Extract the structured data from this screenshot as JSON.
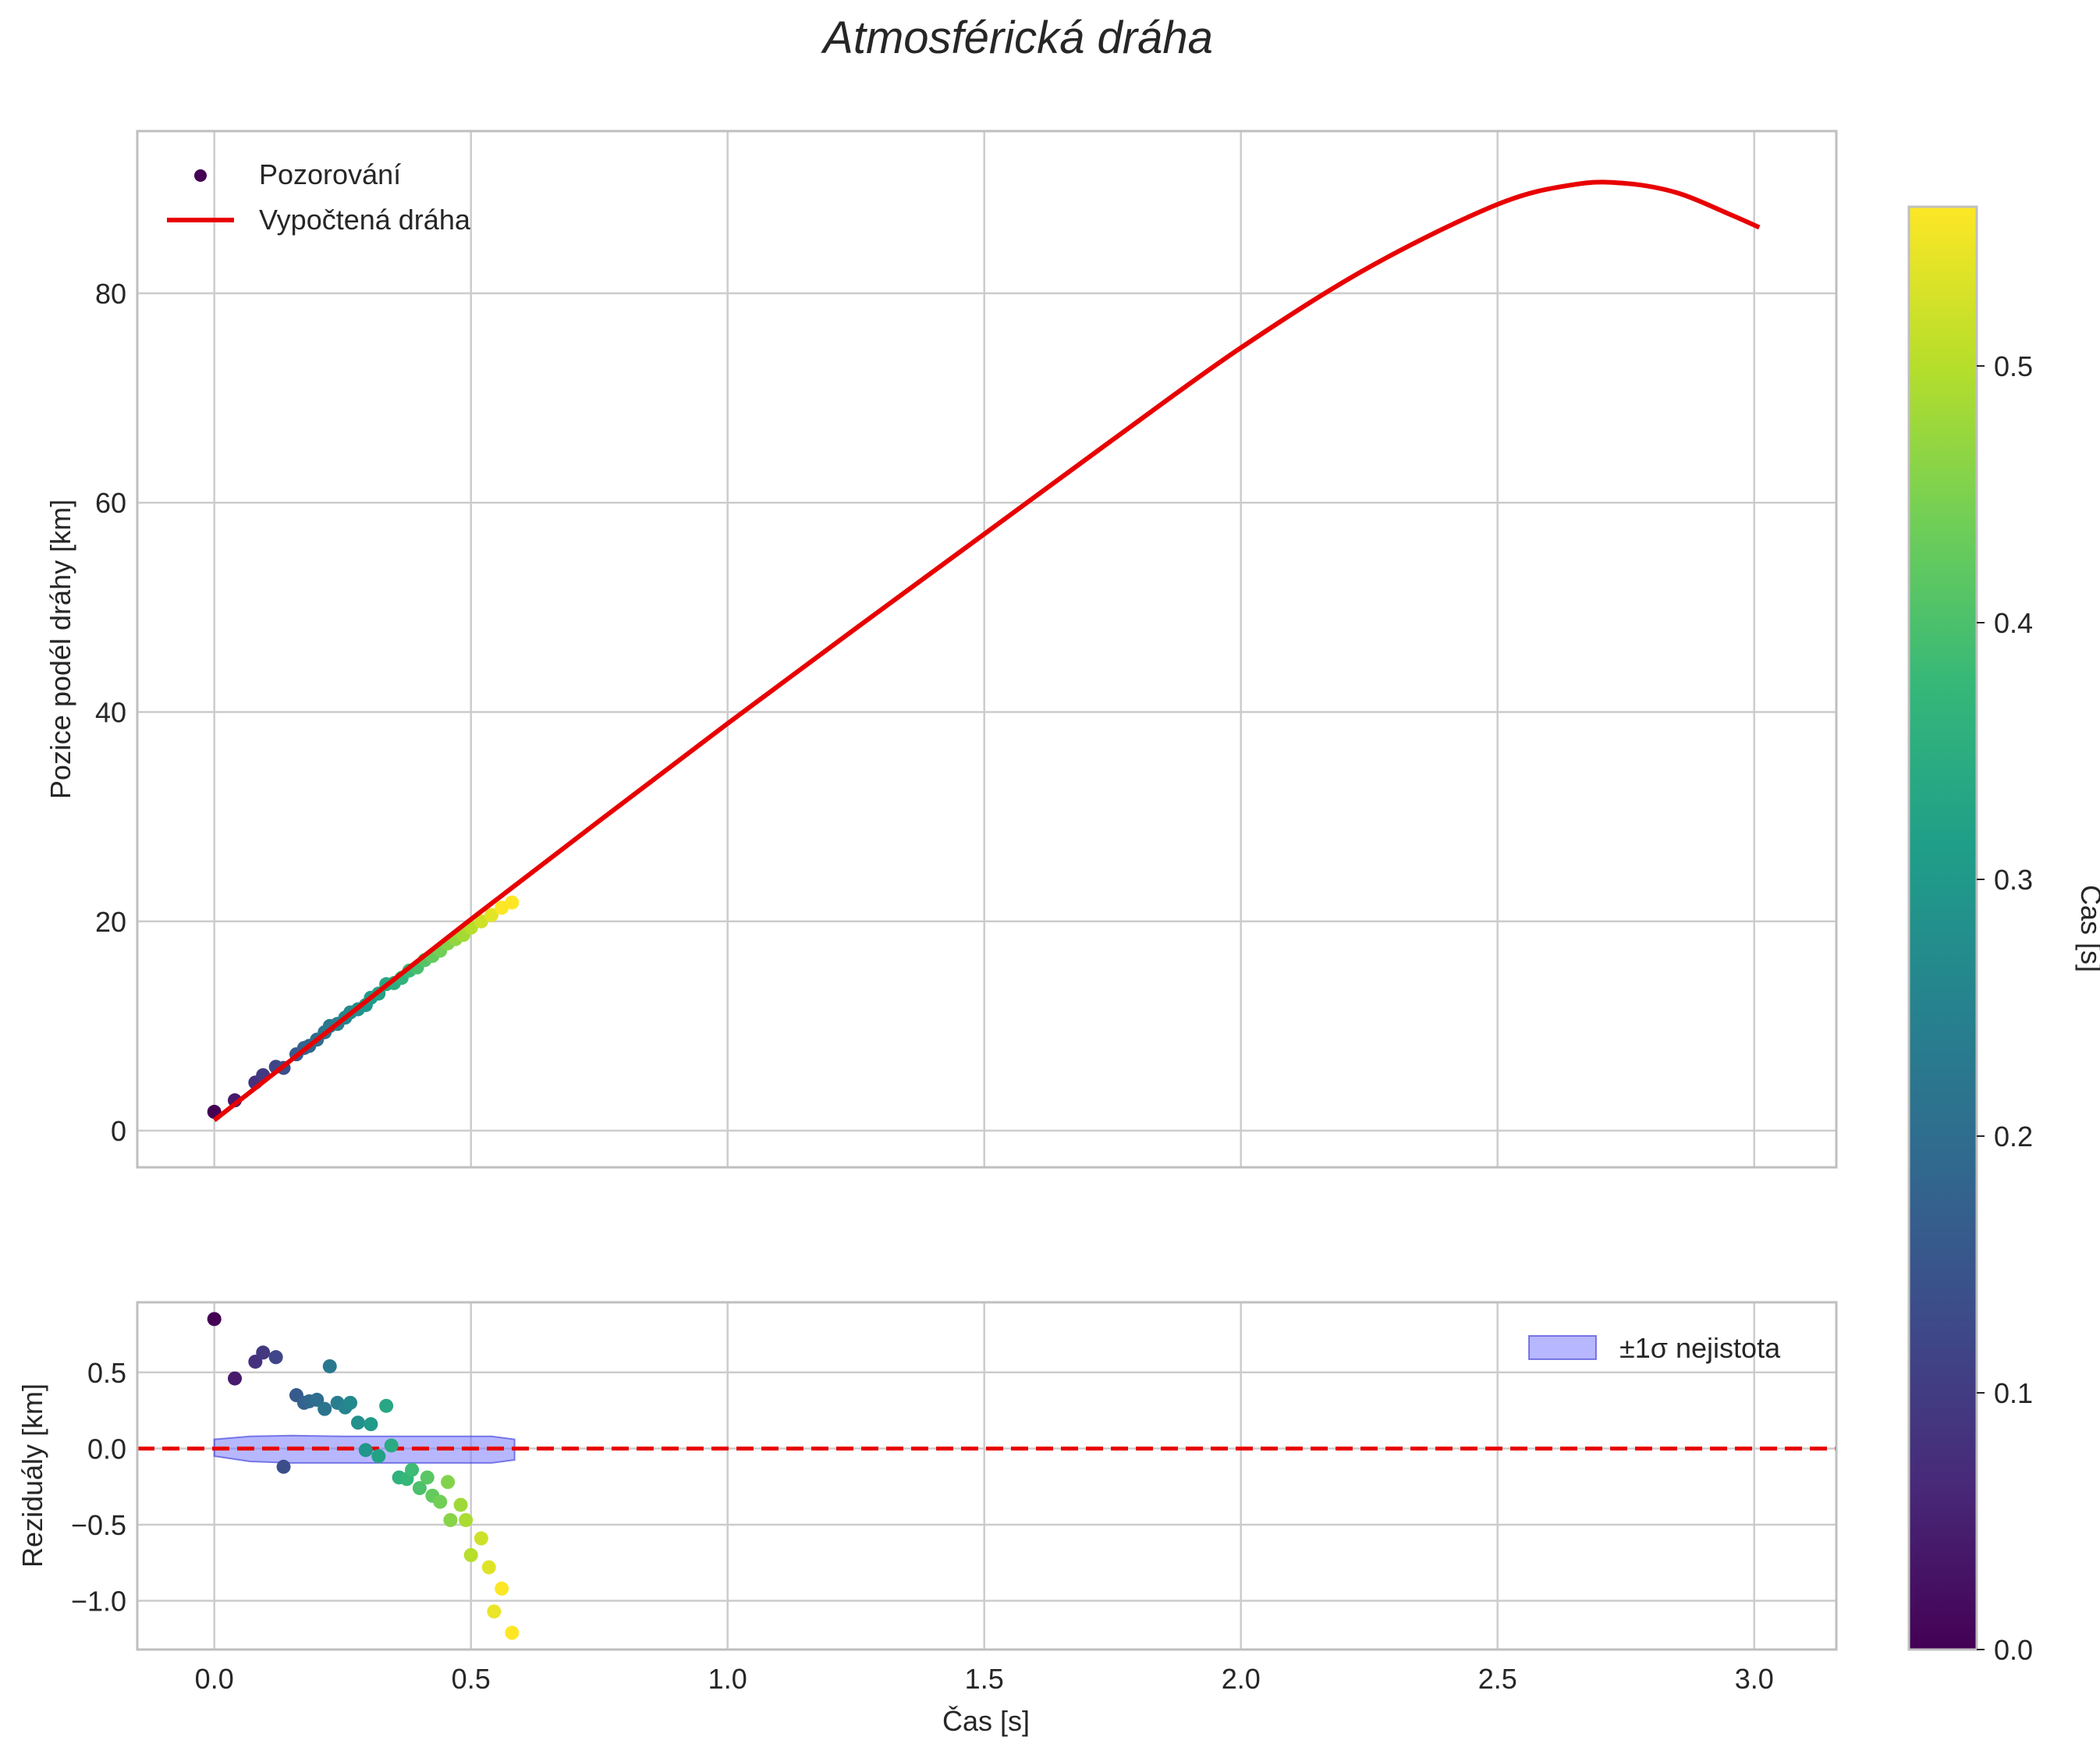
{
  "chart_data": {
    "title": "Atmosférická dráha",
    "colors": {
      "fit_line": "#e80000",
      "zero_line": "#e80000",
      "band_fill": "#7b7bff",
      "band_edge": "#3535d8",
      "grid": "#cccccc",
      "axes_edge": "#bfbfbf"
    },
    "colormap": [
      "#440154",
      "#482878",
      "#3e4989",
      "#31688e",
      "#26828e",
      "#1f9e89",
      "#35b779",
      "#6ece58",
      "#b5de2b",
      "#fde725"
    ],
    "colorbar": {
      "label": "Čas [s]",
      "range": [
        0.0,
        0.562
      ],
      "ticks": [
        0.0,
        0.1,
        0.2,
        0.3,
        0.4,
        0.5
      ],
      "tick_labels": [
        "0.0",
        "0.1",
        "0.2",
        "0.3",
        "0.4",
        "0.5"
      ]
    },
    "x_axis": {
      "label": "Čas [s]",
      "range": [
        -0.15,
        3.16
      ],
      "ticks": [
        0.0,
        0.5,
        1.0,
        1.5,
        2.0,
        2.5,
        3.0
      ],
      "tick_labels": [
        "0.0",
        "0.5",
        "1.0",
        "1.5",
        "2.0",
        "2.5",
        "3.0"
      ]
    },
    "top_panel": {
      "type": "scatter+line",
      "ylabel": "Pozice podél dráhy [km]",
      "ylim": [
        -3.5,
        95.5
      ],
      "yticks": [
        0,
        20,
        40,
        60,
        80
      ],
      "ytick_labels": [
        "0",
        "20",
        "40",
        "60",
        "80"
      ],
      "legend": {
        "placement": "upper-left",
        "entries": [
          {
            "label": "Pozorování",
            "kind": "marker"
          },
          {
            "label": "Vypočtená dráha",
            "kind": "line"
          }
        ]
      },
      "fit_curve": {
        "x": [
          0.0,
          0.25,
          0.5,
          0.75,
          1.0,
          1.25,
          1.5,
          1.75,
          2.0,
          2.25,
          2.5,
          2.65,
          2.75,
          2.85,
          2.95,
          3.01
        ],
        "y": [
          1.0,
          10.6,
          20.2,
          29.6,
          38.9,
          48.0,
          57.0,
          66.0,
          74.8,
          82.5,
          88.5,
          90.4,
          90.5,
          89.6,
          87.6,
          86.3
        ]
      },
      "observations": {
        "t": [
          0.0,
          0.04,
          0.08,
          0.095,
          0.12,
          0.135,
          0.16,
          0.175,
          0.185,
          0.2,
          0.215,
          0.225,
          0.24,
          0.255,
          0.265,
          0.28,
          0.295,
          0.305,
          0.32,
          0.335,
          0.35,
          0.365,
          0.38,
          0.395,
          0.41,
          0.425,
          0.44,
          0.455,
          0.47,
          0.485,
          0.5,
          0.52,
          0.54,
          0.56,
          0.58
        ],
        "pos": [
          1.8,
          2.9,
          4.6,
          5.3,
          6.1,
          6.0,
          7.3,
          7.9,
          8.1,
          8.7,
          9.4,
          10.0,
          10.2,
          10.8,
          11.3,
          11.6,
          12.0,
          12.7,
          13.1,
          14.0,
          14.1,
          14.6,
          15.3,
          15.6,
          16.3,
          16.7,
          17.2,
          17.9,
          18.3,
          18.7,
          19.4,
          20.0,
          20.6,
          21.3,
          21.8
        ]
      }
    },
    "bottom_panel": {
      "type": "scatter",
      "ylabel": "Reziduály [km]",
      "ylim": [
        -1.32,
        0.96
      ],
      "yticks": [
        -1.0,
        -0.5,
        0.0,
        0.5
      ],
      "ytick_labels": [
        "−1.0",
        "−0.5",
        "0.0",
        "0.5"
      ],
      "legend": {
        "placement": "upper-right",
        "entries": [
          {
            "label": "±1σ nejistota",
            "kind": "patch"
          }
        ]
      },
      "zero_line": 0.0,
      "band": {
        "x": [
          0.0,
          0.07,
          0.15,
          0.25,
          0.35,
          0.45,
          0.54,
          0.585
        ],
        "upper": [
          0.06,
          0.08,
          0.085,
          0.08,
          0.08,
          0.08,
          0.08,
          0.06
        ],
        "lower": [
          -0.05,
          -0.085,
          -0.095,
          -0.095,
          -0.095,
          -0.095,
          -0.095,
          -0.075
        ]
      },
      "residuals": {
        "t": [
          0.0,
          0.04,
          0.08,
          0.095,
          0.12,
          0.135,
          0.16,
          0.175,
          0.185,
          0.2,
          0.215,
          0.225,
          0.24,
          0.255,
          0.265,
          0.28,
          0.295,
          0.305,
          0.32,
          0.335,
          0.345,
          0.36,
          0.375,
          0.385,
          0.4,
          0.415,
          0.425,
          0.44,
          0.455,
          0.46,
          0.48,
          0.49,
          0.5,
          0.52,
          0.535,
          0.545,
          0.56,
          0.58
        ],
        "res": [
          0.85,
          0.46,
          0.57,
          0.63,
          0.6,
          -0.12,
          0.35,
          0.3,
          0.31,
          0.32,
          0.26,
          0.54,
          0.3,
          0.27,
          0.3,
          0.17,
          -0.01,
          0.16,
          -0.05,
          0.28,
          0.02,
          -0.19,
          -0.2,
          -0.14,
          -0.26,
          -0.19,
          -0.31,
          -0.35,
          -0.22,
          -0.47,
          -0.37,
          -0.47,
          -0.7,
          -0.59,
          -0.78,
          -1.07,
          -0.92,
          -1.21
        ]
      }
    }
  }
}
